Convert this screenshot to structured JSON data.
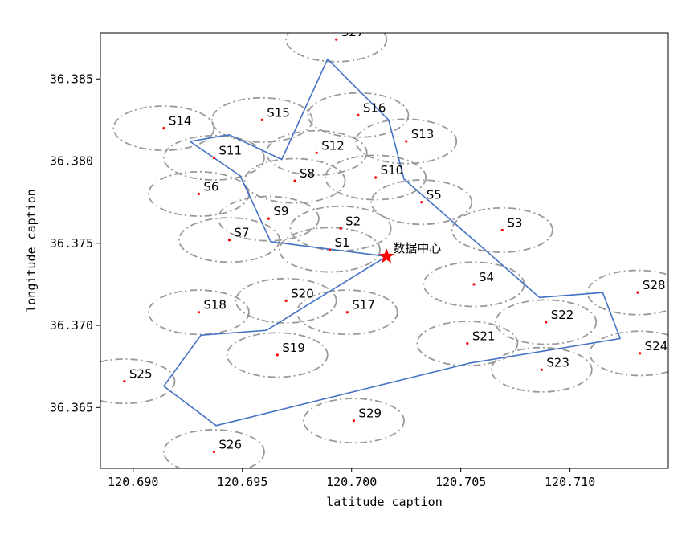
{
  "chart_data": {
    "type": "scatter",
    "title": "",
    "xlabel": "latitude caption",
    "ylabel": "longitude caption",
    "xlim": [
      120.6885,
      120.7145
    ],
    "ylim": [
      36.3613,
      36.3878
    ],
    "xticks": [
      120.69,
      120.695,
      120.7,
      120.705,
      120.71
    ],
    "xtick_labels": [
      "120.690",
      "120.695",
      "120.700",
      "120.705",
      "120.710"
    ],
    "yticks": [
      36.365,
      36.37,
      36.375,
      36.38,
      36.385
    ],
    "ytick_labels": [
      "36.365",
      "36.370",
      "36.375",
      "36.380",
      "36.385"
    ],
    "grid": false,
    "coverage_radius": {
      "x": 0.0023,
      "y": 0.00135
    },
    "node_color": "#ff0000",
    "circle_color": "#999999",
    "route_color": "#4472c4",
    "center": {
      "name": "数据中心",
      "x": 120.7016,
      "y": 36.3742,
      "color": "#ff0000"
    },
    "nodes": [
      {
        "name": "S1",
        "x": 120.699,
        "y": 36.3746
      },
      {
        "name": "S2",
        "x": 120.6995,
        "y": 36.3759
      },
      {
        "name": "S3",
        "x": 120.7069,
        "y": 36.3758
      },
      {
        "name": "S4",
        "x": 120.7056,
        "y": 36.3725
      },
      {
        "name": "S5",
        "x": 120.7032,
        "y": 36.3775
      },
      {
        "name": "S6",
        "x": 120.693,
        "y": 36.378
      },
      {
        "name": "S7",
        "x": 120.6944,
        "y": 36.3752
      },
      {
        "name": "S8",
        "x": 120.6974,
        "y": 36.3788
      },
      {
        "name": "S9",
        "x": 120.6962,
        "y": 36.3765
      },
      {
        "name": "S10",
        "x": 120.7011,
        "y": 36.379
      },
      {
        "name": "S11",
        "x": 120.6937,
        "y": 36.3802
      },
      {
        "name": "S12",
        "x": 120.6984,
        "y": 36.3805
      },
      {
        "name": "S13",
        "x": 120.7025,
        "y": 36.3812
      },
      {
        "name": "S14",
        "x": 120.6914,
        "y": 36.382
      },
      {
        "name": "S15",
        "x": 120.6959,
        "y": 36.3825
      },
      {
        "name": "S16",
        "x": 120.7003,
        "y": 36.3828
      },
      {
        "name": "S17",
        "x": 120.6998,
        "y": 36.3708
      },
      {
        "name": "S18",
        "x": 120.693,
        "y": 36.3708
      },
      {
        "name": "S19",
        "x": 120.6966,
        "y": 36.3682
      },
      {
        "name": "S20",
        "x": 120.697,
        "y": 36.3715
      },
      {
        "name": "S21",
        "x": 120.7053,
        "y": 36.3689
      },
      {
        "name": "S22",
        "x": 120.7089,
        "y": 36.3702
      },
      {
        "name": "S23",
        "x": 120.7087,
        "y": 36.3673
      },
      {
        "name": "S24",
        "x": 120.7132,
        "y": 36.3683
      },
      {
        "name": "S25",
        "x": 120.6896,
        "y": 36.3666
      },
      {
        "name": "S26",
        "x": 120.6937,
        "y": 36.3623
      },
      {
        "name": "S27",
        "x": 120.6993,
        "y": 36.3874
      },
      {
        "name": "S28",
        "x": 120.7131,
        "y": 36.372
      },
      {
        "name": "S29",
        "x": 120.7001,
        "y": 36.3642
      }
    ],
    "route": [
      [
        120.7016,
        36.3742
      ],
      [
        120.6963,
        36.3751
      ],
      [
        120.6949,
        36.3791
      ],
      [
        120.6926,
        36.3812
      ],
      [
        120.6944,
        36.3816
      ],
      [
        120.6968,
        36.3801
      ],
      [
        120.6989,
        36.3862
      ],
      [
        120.7017,
        36.3825
      ],
      [
        120.7024,
        36.3789
      ],
      [
        120.7086,
        36.3717
      ],
      [
        120.7115,
        36.372
      ],
      [
        120.7123,
        36.3692
      ],
      [
        120.7054,
        36.3677
      ],
      [
        120.6938,
        36.3639
      ],
      [
        120.6914,
        36.3663
      ],
      [
        120.6931,
        36.3694
      ],
      [
        120.6961,
        36.3697
      ],
      [
        120.7016,
        36.3742
      ]
    ]
  }
}
